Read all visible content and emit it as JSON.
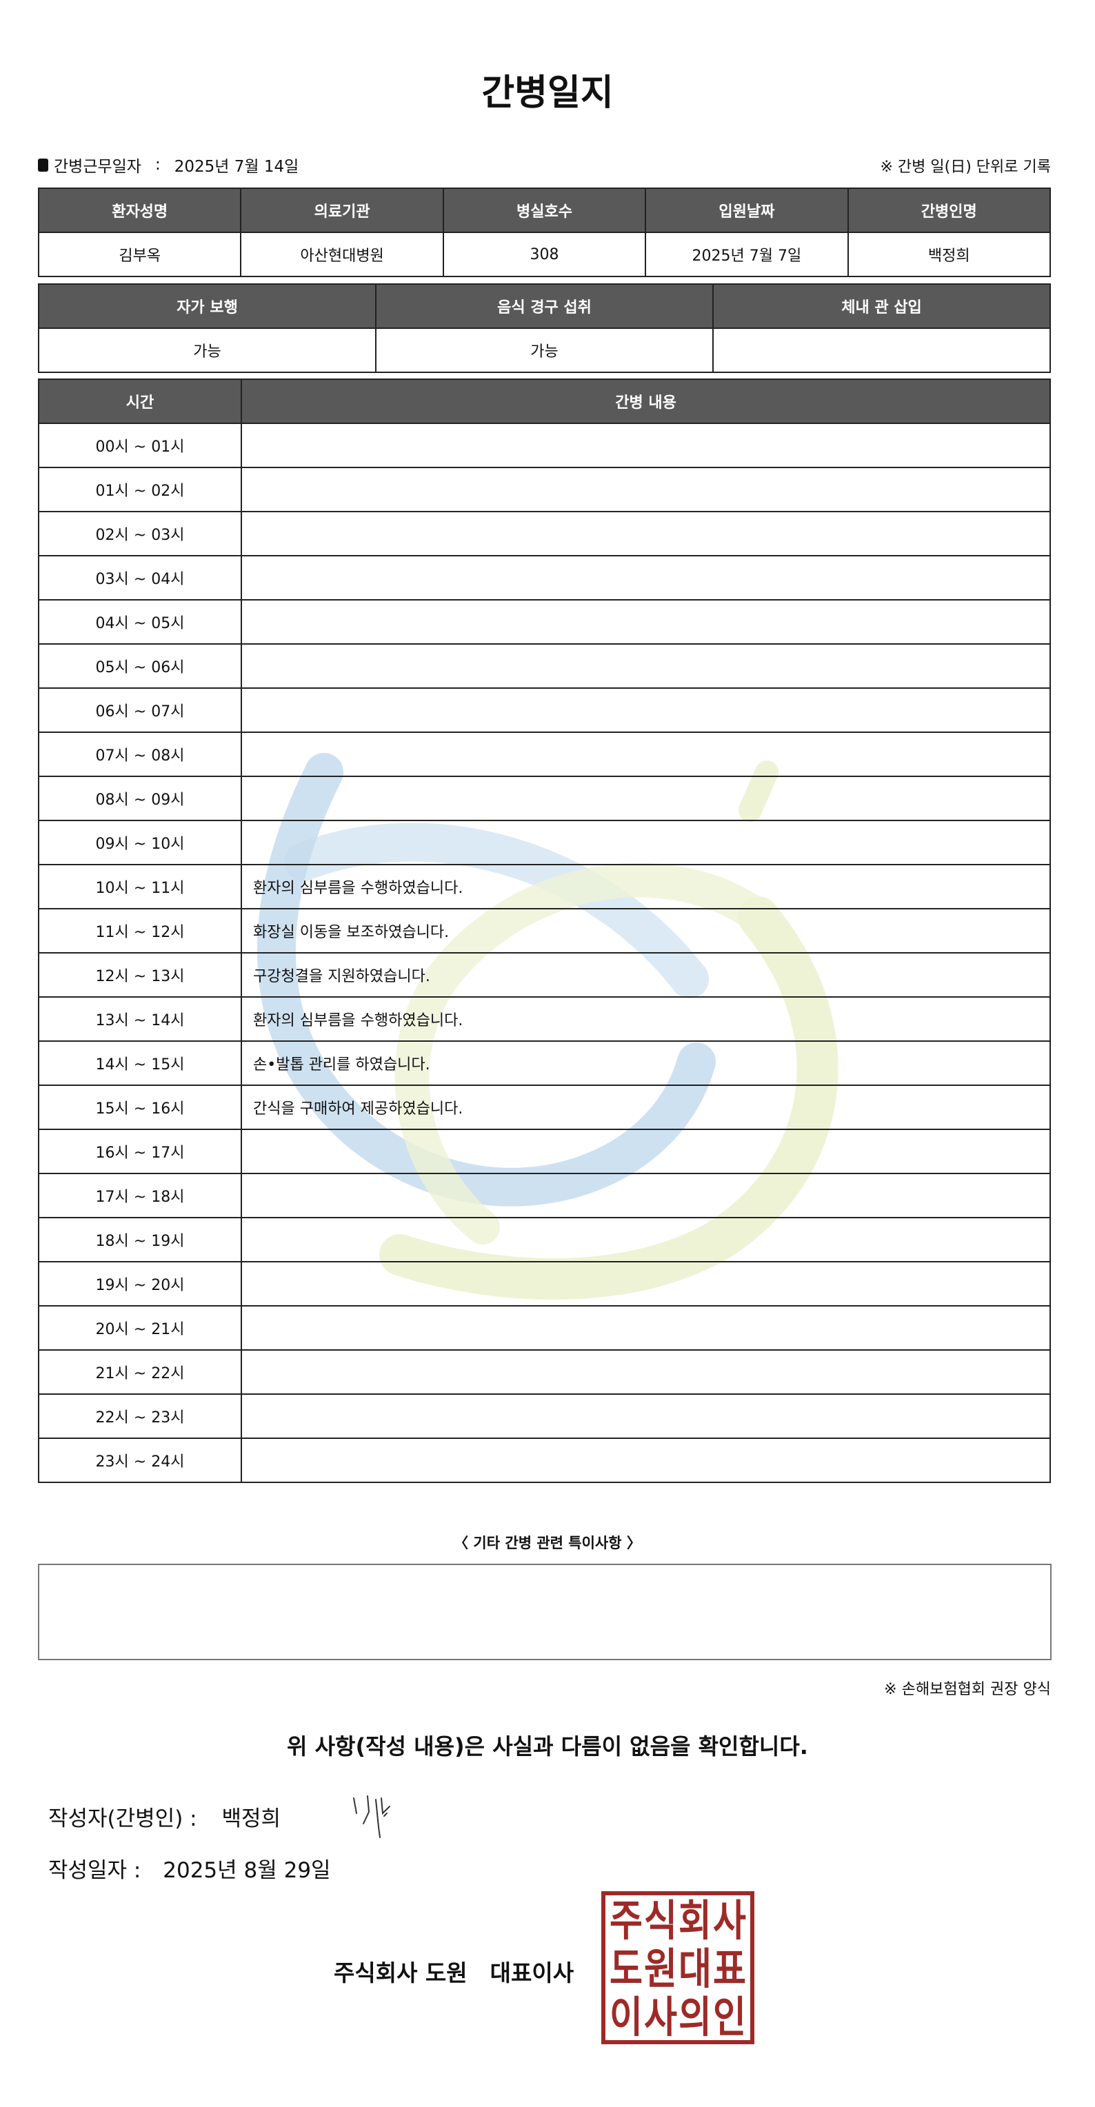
{
  "title": "간병일지",
  "work_date": {
    "label": "간병근무일자",
    "sep": ":",
    "value": "2025년 7월 14일"
  },
  "note_top": "※ 간병 일(日) 단위로 기록",
  "patient_table": {
    "headers": [
      "환자성명",
      "의료기관",
      "병실호수",
      "입원날짜",
      "간병인명"
    ],
    "values": [
      "김부옥",
      "아산현대병원",
      "308",
      "2025년 7월 7일",
      "백정희"
    ]
  },
  "status_table": {
    "headers": [
      "자가 보행",
      "음식 경구 섭취",
      "체내 관 삽입"
    ],
    "values": [
      "가능",
      "가능",
      ""
    ]
  },
  "log_table": {
    "headers": [
      "시간",
      "간병 내용"
    ],
    "rows": [
      {
        "time": "00시 ~ 01시",
        "content": ""
      },
      {
        "time": "01시 ~ 02시",
        "content": ""
      },
      {
        "time": "02시 ~ 03시",
        "content": ""
      },
      {
        "time": "03시 ~ 04시",
        "content": ""
      },
      {
        "time": "04시 ~ 05시",
        "content": ""
      },
      {
        "time": "05시 ~ 06시",
        "content": ""
      },
      {
        "time": "06시 ~ 07시",
        "content": ""
      },
      {
        "time": "07시 ~ 08시",
        "content": ""
      },
      {
        "time": "08시 ~ 09시",
        "content": ""
      },
      {
        "time": "09시 ~ 10시",
        "content": ""
      },
      {
        "time": "10시 ~ 11시",
        "content": "환자의 심부름을 수행하였습니다."
      },
      {
        "time": "11시 ~ 12시",
        "content": "화장실 이동을 보조하였습니다."
      },
      {
        "time": "12시 ~ 13시",
        "content": "구강청결을 지원하였습니다."
      },
      {
        "time": "13시 ~ 14시",
        "content": "환자의 심부름을 수행하였습니다."
      },
      {
        "time": "14시 ~ 15시",
        "content": "손•발톱 관리를 하였습니다."
      },
      {
        "time": "15시 ~ 16시",
        "content": "간식을 구매하여 제공하였습니다."
      },
      {
        "time": "16시 ~ 17시",
        "content": ""
      },
      {
        "time": "17시 ~ 18시",
        "content": ""
      },
      {
        "time": "18시 ~ 19시",
        "content": ""
      },
      {
        "time": "19시 ~ 20시",
        "content": ""
      },
      {
        "time": "20시 ~ 21시",
        "content": ""
      },
      {
        "time": "21시 ~ 22시",
        "content": ""
      },
      {
        "time": "22시 ~ 23시",
        "content": ""
      },
      {
        "time": "23시 ~ 24시",
        "content": ""
      }
    ]
  },
  "notes": {
    "label": "〈 기타 간병 관련 특이사항 〉",
    "value": ""
  },
  "association_note": "※ 손해보험협회 권장 양식",
  "confirmation": "위 사항(작성 내용)은 사실과 다름이 없음을 확인합니다.",
  "author": {
    "label": "작성자(간병인) :",
    "name": "백정희"
  },
  "written_date": {
    "label": "작성일자 :",
    "value": "2025년 8월 29일"
  },
  "company": "주식회사 도원　대표이사",
  "seal_text": "주식회사도원대표이사의인",
  "colors": {
    "header_bg": "#595959",
    "seal": "#9e2a28",
    "watermark_blue": "#c5dcef",
    "watermark_green": "#eef3d6"
  }
}
